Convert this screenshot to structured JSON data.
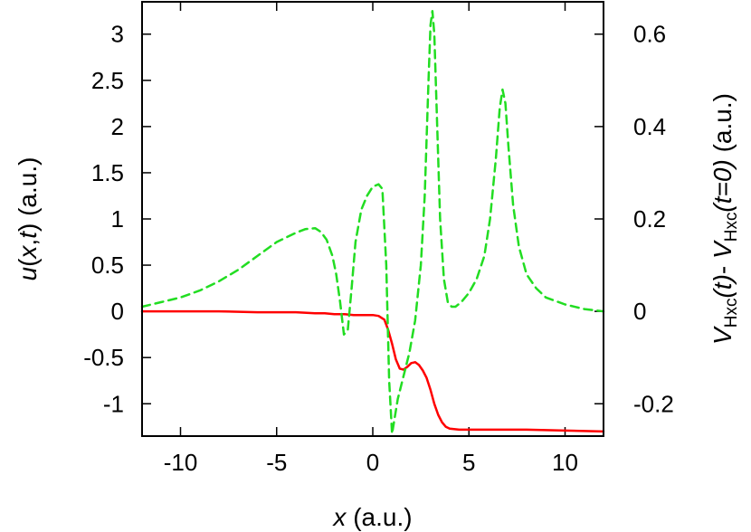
{
  "chart_data": {
    "type": "line",
    "title": "",
    "grid": false,
    "legend": "none",
    "x_axis": {
      "label_var": "x",
      "label_unit": " (a.u.)",
      "range": [
        -12,
        12
      ],
      "ticks": [
        -10,
        -5,
        0,
        5,
        10
      ],
      "tick_labels": [
        "-10",
        "-5",
        "0",
        "5",
        "10"
      ]
    },
    "y_left": {
      "label_parts": {
        "fn": "u",
        "open": "(",
        "x": "x",
        "comma": ",",
        "t": "t",
        "close": ")",
        "unit": " (a.u.)"
      },
      "range": [
        -1.35,
        3.35
      ],
      "ticks": [
        -1,
        -0.5,
        0,
        0.5,
        1,
        1.5,
        2,
        2.5,
        3
      ],
      "tick_labels": [
        "-1",
        "-0.5",
        "0",
        "0.5",
        "1",
        "1.5",
        "2",
        "2.5",
        "3"
      ]
    },
    "y_right": {
      "label_parts": {
        "v1": "V",
        "s1": "Hxc",
        "t1": "(t)",
        "dash": "- ",
        "v2": "V",
        "s2": "Hxc",
        "t2": "(t=0)",
        "unit": " (a.u.)"
      },
      "range": [
        -0.27,
        0.67
      ],
      "ticks": [
        -0.2,
        0,
        0.2,
        0.4,
        0.6
      ],
      "tick_labels": [
        "-0.2",
        "0",
        "0.2",
        "0.4",
        "0.6"
      ]
    },
    "series": [
      {
        "axis": "left",
        "color": "#ff0000",
        "style": "solid",
        "x": [
          -12,
          -10,
          -8,
          -6,
          -4,
          -3,
          -2.5,
          -2,
          -1.5,
          -1,
          -0.5,
          0,
          0.3,
          0.6,
          0.8,
          1.0,
          1.2,
          1.4,
          1.6,
          1.8,
          2.0,
          2.2,
          2.4,
          2.6,
          2.8,
          3.0,
          3.2,
          3.4,
          3.6,
          3.8,
          4.0,
          4.5,
          5,
          6,
          8,
          10,
          12
        ],
        "y": [
          0.0,
          0.0,
          0.0,
          -0.01,
          -0.01,
          -0.02,
          -0.02,
          -0.03,
          -0.03,
          -0.04,
          -0.04,
          -0.04,
          -0.05,
          -0.09,
          -0.2,
          -0.35,
          -0.52,
          -0.62,
          -0.63,
          -0.6,
          -0.56,
          -0.55,
          -0.58,
          -0.64,
          -0.72,
          -0.85,
          -1.0,
          -1.12,
          -1.2,
          -1.25,
          -1.27,
          -1.28,
          -1.28,
          -1.28,
          -1.28,
          -1.29,
          -1.3
        ]
      },
      {
        "axis": "right",
        "color": "#22dd22",
        "style": "dashed",
        "x": [
          -12,
          -11,
          -10,
          -9,
          -8,
          -7,
          -6,
          -5,
          -4,
          -3.5,
          -3.0,
          -2.7,
          -2.4,
          -2.1,
          -1.9,
          -1.7,
          -1.5,
          -1.3,
          -1.1,
          -0.9,
          -0.6,
          -0.3,
          0.0,
          0.3,
          0.5,
          0.7,
          0.85,
          1.0,
          1.1,
          1.3,
          1.6,
          1.9,
          2.2,
          2.5,
          2.7,
          2.9,
          3.0,
          3.1,
          3.2,
          3.35,
          3.5,
          3.7,
          3.9,
          4.1,
          4.3,
          4.6,
          5.0,
          5.4,
          5.8,
          6.1,
          6.4,
          6.6,
          6.75,
          6.9,
          7.05,
          7.3,
          7.6,
          8.0,
          8.5,
          9,
          10,
          11,
          12
        ],
        "y": [
          0.01,
          0.02,
          0.03,
          0.045,
          0.065,
          0.09,
          0.12,
          0.15,
          0.17,
          0.178,
          0.18,
          0.172,
          0.155,
          0.12,
          0.08,
          0.02,
          -0.05,
          -0.04,
          0.05,
          0.15,
          0.22,
          0.25,
          0.27,
          0.275,
          0.265,
          0.1,
          -0.15,
          -0.265,
          -0.24,
          -0.19,
          -0.14,
          -0.09,
          -0.02,
          0.1,
          0.25,
          0.5,
          0.62,
          0.65,
          0.6,
          0.4,
          0.2,
          0.07,
          0.02,
          0.01,
          0.01,
          0.02,
          0.04,
          0.07,
          0.12,
          0.2,
          0.33,
          0.44,
          0.48,
          0.45,
          0.36,
          0.23,
          0.14,
          0.08,
          0.05,
          0.03,
          0.015,
          0.005,
          0.0
        ]
      }
    ]
  }
}
